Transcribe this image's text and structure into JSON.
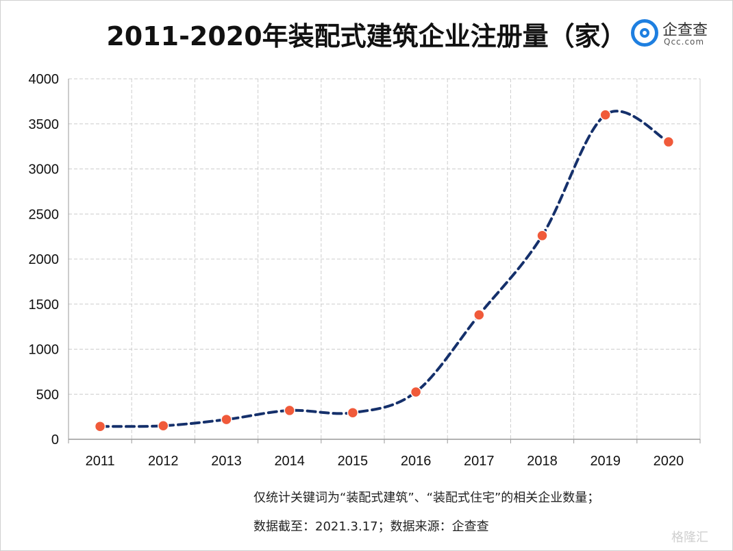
{
  "title": "2011-2020年装配式建筑企业注册量（家）",
  "logo": {
    "name": "企查查",
    "domain": "Qcc.com"
  },
  "notes": [
    "仅统计关键词为“装配式建筑”、“装配式住宅”的相关企业数量；",
    "数据截至：2021.3.17；数据来源：企查查"
  ],
  "watermark": "格隆汇",
  "colors": {
    "line": "#15306b",
    "marker": "#f05a3a",
    "grid": "#cccccc",
    "axis": "#999999"
  },
  "chart_data": {
    "type": "line",
    "title": "2011-2020年装配式建筑企业注册量（家）",
    "categories": [
      "2011",
      "2012",
      "2013",
      "2014",
      "2015",
      "2016",
      "2017",
      "2018",
      "2019",
      "2020"
    ],
    "series": [
      {
        "values": [
          143,
          150,
          220,
          320,
          295,
          525,
          1380,
          2260,
          3600,
          3300
        ]
      }
    ],
    "ylim": [
      0,
      4000
    ],
    "yticks": [
      0,
      500,
      1000,
      1500,
      2000,
      2500,
      3000,
      3500,
      4000
    ],
    "grid": true,
    "line_style": "dashed-smooth",
    "legend": "none"
  }
}
